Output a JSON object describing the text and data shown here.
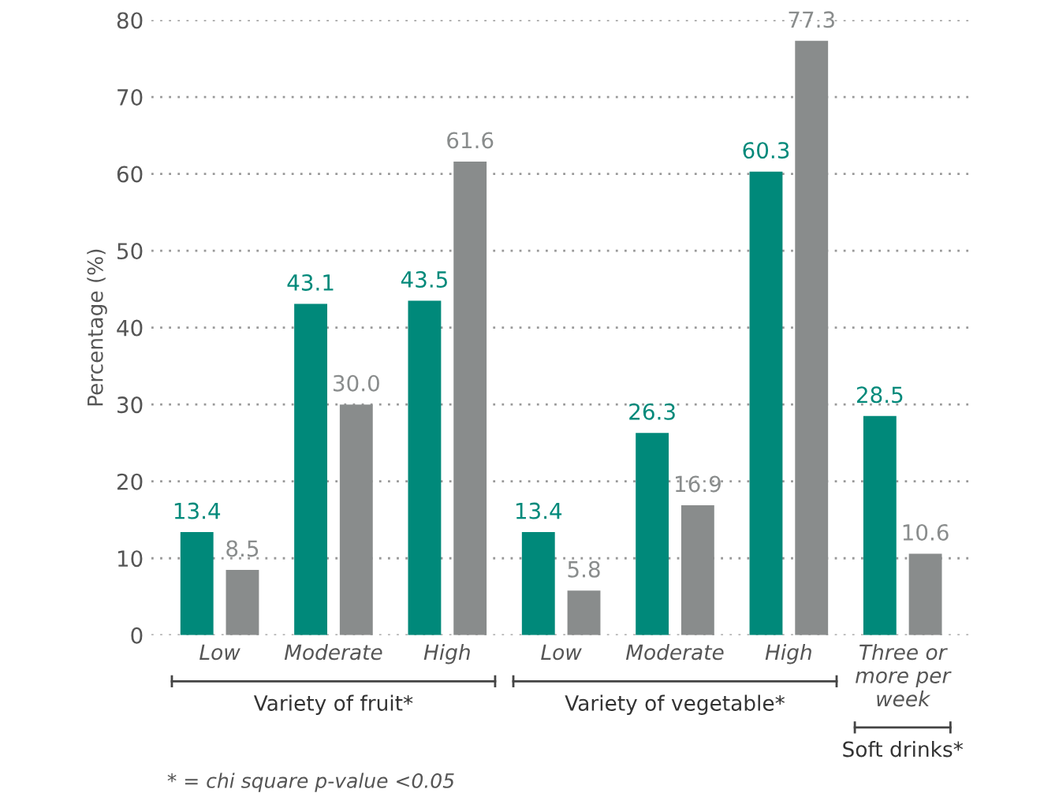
{
  "chart_data": {
    "type": "bar",
    "ylabel": "Percentage (%)",
    "categories": [
      "Low",
      "Moderate",
      "High",
      "Low",
      "Moderate",
      "High",
      "Three or\nmore per\nweek"
    ],
    "series": [
      {
        "color": "#00897a",
        "values": [
          13.4,
          43.1,
          43.5,
          13.4,
          26.3,
          60.3,
          28.5
        ]
      },
      {
        "color": "#898c8c",
        "values": [
          8.5,
          30.0,
          61.6,
          5.8,
          16.9,
          77.3,
          10.6
        ]
      }
    ],
    "value_labels": [
      [
        "13.4",
        "43.1",
        "43.5",
        "13.4",
        "26.3",
        "60.3",
        "28.5"
      ],
      [
        "8.5",
        "30.0",
        "61.6",
        "5.8",
        "16.9",
        "77.3",
        "10.6"
      ]
    ],
    "ylim": [
      0,
      80
    ],
    "yticks": [
      0,
      10,
      20,
      30,
      40,
      50,
      60,
      70,
      80
    ],
    "grid": "y",
    "legend": false,
    "annotations": [
      "Variety of fruit*",
      "Variety of vegetable*",
      "Soft drinks*",
      "* = chi square p-value <0.05"
    ]
  }
}
